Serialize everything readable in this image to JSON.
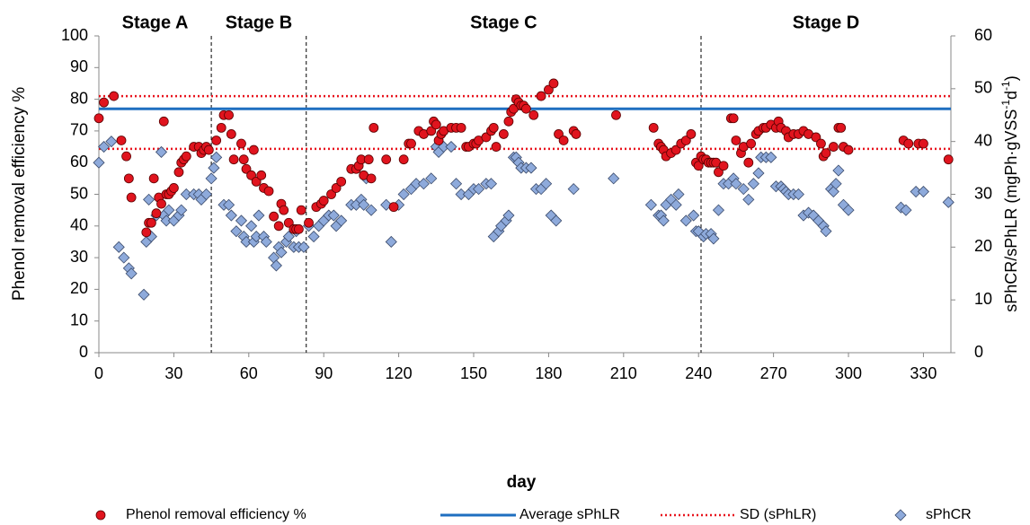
{
  "chart_data": {
    "type": "scatter",
    "xlabel": "day",
    "ylabel": "Phenol removal efficiency %",
    "y2label": {
      "text": "sPhCR/sPhLR (mgPh·gVSS",
      "sup1": "-1",
      "mid": "d",
      "sup2": "-1",
      "end": ")"
    },
    "xlim": [
      0,
      341
    ],
    "xticks": [
      0,
      30,
      60,
      90,
      120,
      150,
      180,
      210,
      240,
      270,
      300,
      330
    ],
    "ylim": [
      0,
      100
    ],
    "yticks": [
      0,
      10,
      20,
      30,
      40,
      50,
      60,
      70,
      80,
      90,
      100
    ],
    "y2lim": [
      0,
      60
    ],
    "y2ticks": [
      0,
      10,
      20,
      30,
      40,
      50,
      60
    ],
    "grid": false,
    "stages": [
      "Stage A",
      "Stage B",
      "Stage C",
      "Stage D"
    ],
    "stage_boundaries": [
      45,
      83,
      241
    ],
    "series": [
      {
        "name": "Phenol removal efficiency %",
        "marker": "circle",
        "color": "#e0141e",
        "x": [
          0,
          2,
          6,
          9,
          11,
          12,
          13,
          19,
          20,
          21,
          22,
          23,
          24,
          25,
          26,
          27,
          28,
          29,
          30,
          32,
          33,
          34,
          35,
          38,
          40,
          41,
          42,
          43,
          44,
          47,
          49,
          50,
          52,
          53,
          54,
          57,
          58,
          59,
          61,
          62,
          63,
          65,
          66,
          68,
          70,
          72,
          73,
          74,
          76,
          78,
          79,
          80,
          81,
          84,
          87,
          89,
          90,
          93,
          95,
          97,
          101,
          103,
          104,
          105,
          106,
          108,
          109,
          110,
          115,
          118,
          122,
          124,
          125,
          128,
          130,
          133,
          134,
          135,
          136,
          137,
          138,
          141,
          143,
          145,
          147,
          148,
          150,
          151,
          152,
          155,
          157,
          158,
          159,
          162,
          164,
          165,
          166,
          167,
          168,
          169,
          170,
          171,
          174,
          177,
          180,
          182,
          184,
          186,
          190,
          191,
          207,
          222,
          224,
          225,
          226,
          227,
          229,
          231,
          233,
          235,
          237,
          239,
          240,
          241,
          242,
          243,
          244,
          245,
          246,
          247,
          248,
          250,
          253,
          254,
          255,
          257,
          258,
          260,
          261,
          263,
          264,
          266,
          267,
          269,
          271,
          272,
          273,
          275,
          276,
          278,
          280,
          282,
          284,
          287,
          289,
          290,
          291,
          294,
          296,
          297,
          298,
          300,
          322,
          324,
          328,
          330,
          340
        ],
        "values": [
          74,
          79,
          81,
          67,
          62,
          55,
          49,
          38,
          41,
          41,
          55,
          44,
          49,
          47,
          73,
          50,
          50,
          51,
          52,
          57,
          60,
          61,
          62,
          65,
          65,
          63,
          64,
          65,
          64,
          67,
          71,
          75,
          75,
          69,
          61,
          66,
          61,
          58,
          56,
          64,
          54,
          56,
          52,
          51,
          43,
          40,
          47,
          45,
          41,
          39,
          39,
          39,
          45,
          41,
          46,
          47,
          48,
          50,
          52,
          54,
          58,
          58,
          59,
          61,
          56,
          61,
          55,
          71,
          61,
          46,
          61,
          66,
          66,
          70,
          69,
          70,
          73,
          72,
          67,
          69,
          70,
          71,
          71,
          71,
          65,
          65,
          66,
          66,
          67,
          68,
          70,
          71,
          65,
          69,
          73,
          76,
          77,
          80,
          79,
          78,
          78,
          77,
          75,
          81,
          83,
          85,
          69,
          67,
          70,
          69,
          75,
          71,
          66,
          65,
          64,
          62,
          63,
          64,
          66,
          67,
          69,
          60,
          59,
          62,
          61,
          61,
          60,
          60,
          60,
          60,
          57,
          59,
          74,
          74,
          67,
          63,
          65,
          60,
          66,
          69,
          70,
          71,
          71,
          72,
          71,
          73,
          71,
          70,
          68,
          69,
          69,
          70,
          69,
          68,
          66,
          62,
          63,
          65,
          71,
          71,
          65,
          64,
          67,
          66,
          66,
          66,
          61
        ]
      },
      {
        "name": "sPhCR",
        "marker": "diamond",
        "color": "#8eaadb",
        "axis": "y2",
        "x": [
          0,
          2,
          5,
          8,
          10,
          12,
          13,
          18,
          19,
          20,
          21,
          23,
          25,
          26,
          27,
          28,
          30,
          32,
          33,
          35,
          38,
          40,
          41,
          43,
          45,
          46,
          47,
          50,
          52,
          53,
          55,
          57,
          58,
          59,
          61,
          62,
          63,
          64,
          66,
          67,
          70,
          71,
          72,
          73,
          75,
          76,
          78,
          79,
          80,
          82,
          84,
          86,
          88,
          90,
          92,
          94,
          95,
          97,
          101,
          103,
          105,
          106,
          107,
          109,
          115,
          117,
          120,
          122,
          125,
          127,
          130,
          133,
          135,
          136,
          138,
          141,
          143,
          145,
          148,
          150,
          152,
          155,
          157,
          158,
          160,
          161,
          163,
          164,
          166,
          167,
          168,
          169,
          171,
          173,
          175,
          177,
          179,
          181,
          183,
          190,
          206,
          221,
          224,
          225,
          226,
          227,
          229,
          231,
          232,
          235,
          238,
          239,
          240,
          242,
          243,
          245,
          246,
          248,
          250,
          252,
          254,
          255,
          258,
          260,
          262,
          264,
          265,
          267,
          269,
          271,
          273,
          274,
          275,
          276,
          278,
          280,
          282,
          284,
          286,
          288,
          290,
          291,
          293,
          294,
          295,
          296,
          298,
          300,
          321,
          323,
          327,
          330,
          340
        ],
        "values": [
          36,
          39,
          40,
          20,
          18,
          16,
          15,
          11,
          21,
          29,
          22,
          26,
          38,
          26,
          25,
          27,
          25,
          26,
          27,
          30,
          30,
          30,
          29,
          30,
          33,
          35,
          37,
          28,
          28,
          26,
          23,
          25,
          22,
          21,
          24,
          21,
          22,
          26,
          22,
          21,
          18,
          16.5,
          20,
          19,
          21,
          22,
          20,
          23,
          20,
          20,
          24,
          22,
          24,
          25,
          26,
          26,
          24,
          25,
          28,
          28,
          29,
          28,
          33,
          27,
          28,
          21,
          28,
          30,
          31,
          32,
          32,
          33,
          39,
          38,
          39,
          39,
          32,
          30,
          30,
          31,
          31,
          32,
          32,
          22,
          23,
          24,
          25,
          26,
          37,
          37,
          36,
          35,
          35,
          35,
          31,
          31,
          32,
          26,
          25,
          31,
          33,
          28,
          26,
          26,
          25,
          28,
          29,
          28,
          30,
          25,
          26,
          23,
          23,
          22,
          22.5,
          22.5,
          21.6,
          27,
          32,
          32,
          33,
          32,
          31,
          29,
          32,
          34,
          37,
          37,
          37,
          31.5,
          31.5,
          31,
          30.5,
          30,
          30,
          30,
          26,
          26.5,
          26,
          25,
          24,
          23,
          31,
          30.5,
          32,
          34.5,
          28,
          27,
          27.5,
          27,
          30.5,
          30.5,
          28.5
        ]
      }
    ],
    "reference_lines": [
      {
        "name": "Average sPhLR",
        "color": "#1f6fc0",
        "style": "solid",
        "axis": "y2",
        "values": [
          46.2
        ]
      },
      {
        "name": "SD (sPhLR)",
        "color": "#e8141e",
        "style": "dotted",
        "axis": "y2",
        "values": [
          48.6,
          38.6
        ]
      }
    ]
  }
}
